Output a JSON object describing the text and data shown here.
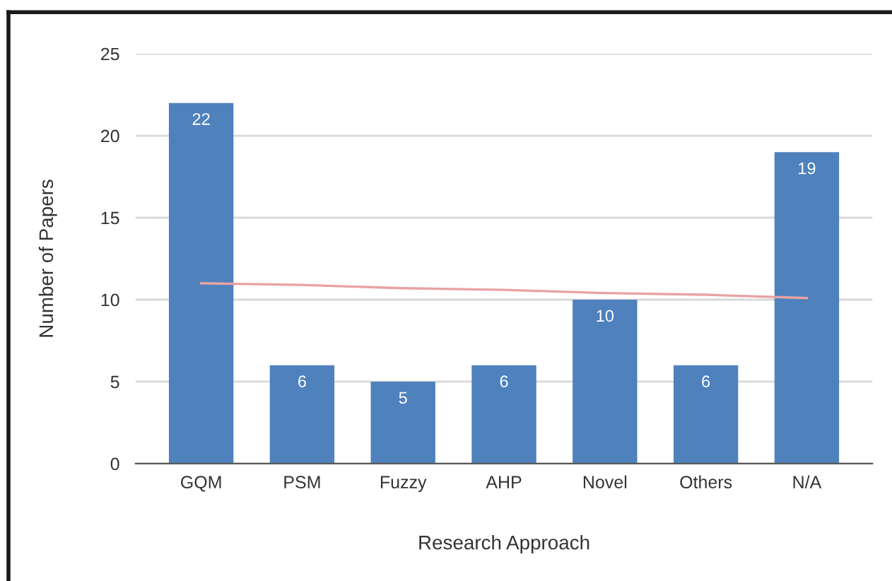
{
  "chart_data": {
    "type": "bar",
    "xlabel": "Research Approach",
    "ylabel": "Number of Papers",
    "categories": [
      "GQM",
      "PSM",
      "Fuzzy",
      "AHP",
      "Novel",
      "Others",
      "N/A"
    ],
    "series": [
      {
        "color": "#4f81bd",
        "values": [
          22,
          6,
          5,
          6,
          10,
          6,
          19
        ],
        "value_labels": [
          "22",
          "6",
          "5",
          "6",
          "10",
          "6",
          "19"
        ]
      },
      {
        "type": "line",
        "color": "#e8a3a3",
        "values": [
          11.0,
          10.9,
          10.7,
          10.6,
          10.4,
          10.3,
          10.1
        ]
      }
    ],
    "ylim": [
      0,
      25
    ],
    "yticks": [
      0,
      5,
      10,
      15,
      20,
      25
    ],
    "grid": "y",
    "marker": "none",
    "line_style": "solid"
  }
}
